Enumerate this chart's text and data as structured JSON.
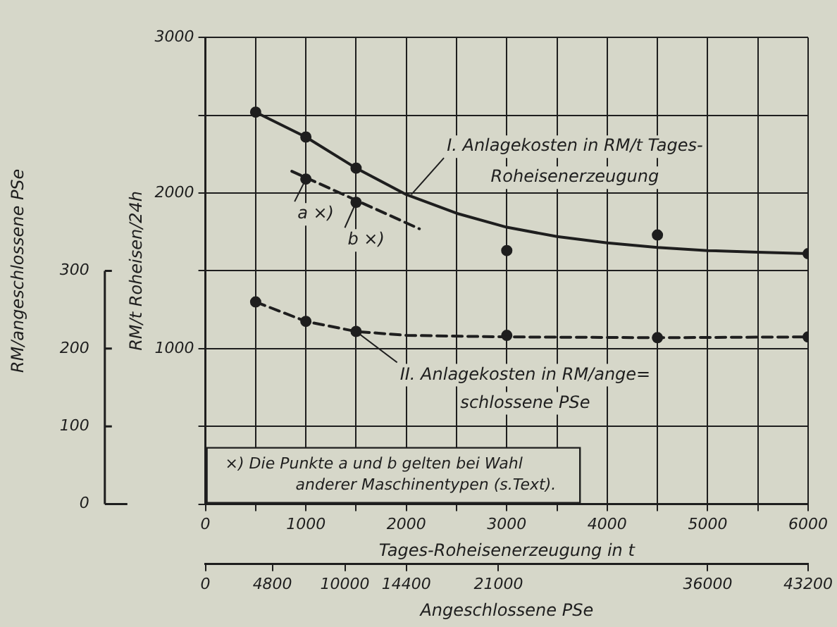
{
  "chart_data": {
    "type": "line",
    "xlabel": "Tages-Roheisenerzeugung in t",
    "ylabel": "RM/t Roheisen/24h",
    "y2label": "RM/angeschlossene PSe",
    "x2label": "Angeschlossene PSe",
    "xlim": [
      0,
      6000
    ],
    "xticks": [
      0,
      {
        "value": 500,
        "label": null
      },
      1000,
      {
        "value": 1500,
        "label": null
      },
      2000,
      {
        "value": 2500,
        "label": null
      },
      3000,
      {
        "value": 3500,
        "label": null
      },
      4000,
      {
        "value": 4500,
        "label": null
      },
      5000,
      {
        "value": 5500,
        "label": null
      },
      6000
    ],
    "ylim": [
      0,
      3000
    ],
    "yticks": [
      {
        "value": 0,
        "label": null
      },
      {
        "value": 500,
        "label": null
      },
      1000,
      {
        "value": 1500,
        "label": null
      },
      2000,
      {
        "value": 2500,
        "label": null
      },
      3000
    ],
    "y2lim": [
      0,
      600
    ],
    "y2ticks": [
      0,
      100,
      200,
      300
    ],
    "x2lim": [
      0,
      43200
    ],
    "x2ticks": [
      0,
      4800,
      10000,
      14400,
      21000,
      36000,
      43200
    ],
    "grid": true,
    "legend": false,
    "series": [
      {
        "color": "#1e1e1e",
        "line_style": "solid",
        "x": [
          500,
          1000,
          1500,
          2000,
          2500,
          3000,
          3500,
          4000,
          4500,
          5000,
          5500,
          6000
        ],
        "values": [
          2520,
          2360,
          2160,
          1990,
          1870,
          1780,
          1720,
          1680,
          1650,
          1630,
          1620,
          1610
        ]
      },
      {
        "type": "scatter",
        "color": "#1e1e1e",
        "marker": "circle",
        "x": [
          500,
          1000,
          1500,
          3000,
          4500,
          6000
        ],
        "values": [
          2520,
          2360,
          2160,
          1630,
          1730,
          1610
        ]
      },
      {
        "color": "#1e1e1e",
        "line_style": "dashed",
        "axis": "y2",
        "x": [
          500,
          1000,
          1500,
          2000,
          3000,
          4500,
          6000
        ],
        "values": [
          260,
          235,
          222,
          217,
          215,
          214,
          215
        ]
      },
      {
        "type": "scatter",
        "color": "#1e1e1e",
        "marker": "circle",
        "axis": "y2",
        "x": [
          500,
          1000,
          1500,
          3000,
          4500,
          6000
        ],
        "values": [
          260,
          235,
          222,
          217,
          214,
          215
        ]
      },
      {
        "color": "#1e1e1e",
        "line_style": "dashed",
        "x": [
          860,
          2130
        ],
        "values": [
          2140,
          1770
        ]
      },
      {
        "type": "scatter",
        "color": "#1e1e1e",
        "marker": "circle",
        "x": [
          1000,
          1500
        ],
        "values": [
          2090,
          1940
        ]
      }
    ],
    "annotations": [
      {
        "text": "I. Anlagekosten in RM/t Tages-\nRoheisenerzeugung",
        "x": 2050,
        "y": 1990
      },
      {
        "text": "II. Anlagekosten in RM/ange=\nschlossene PSe",
        "x": 1500,
        "y": 1110
      },
      {
        "text": "a ×)",
        "x": 1000,
        "y": 2090
      },
      {
        "text": "b ×)",
        "x": 1500,
        "y": 1940
      },
      "×) Die Punkte a und b gelten bei Wahl\nanderer Maschinentypen (s.Text)."
    ]
  }
}
